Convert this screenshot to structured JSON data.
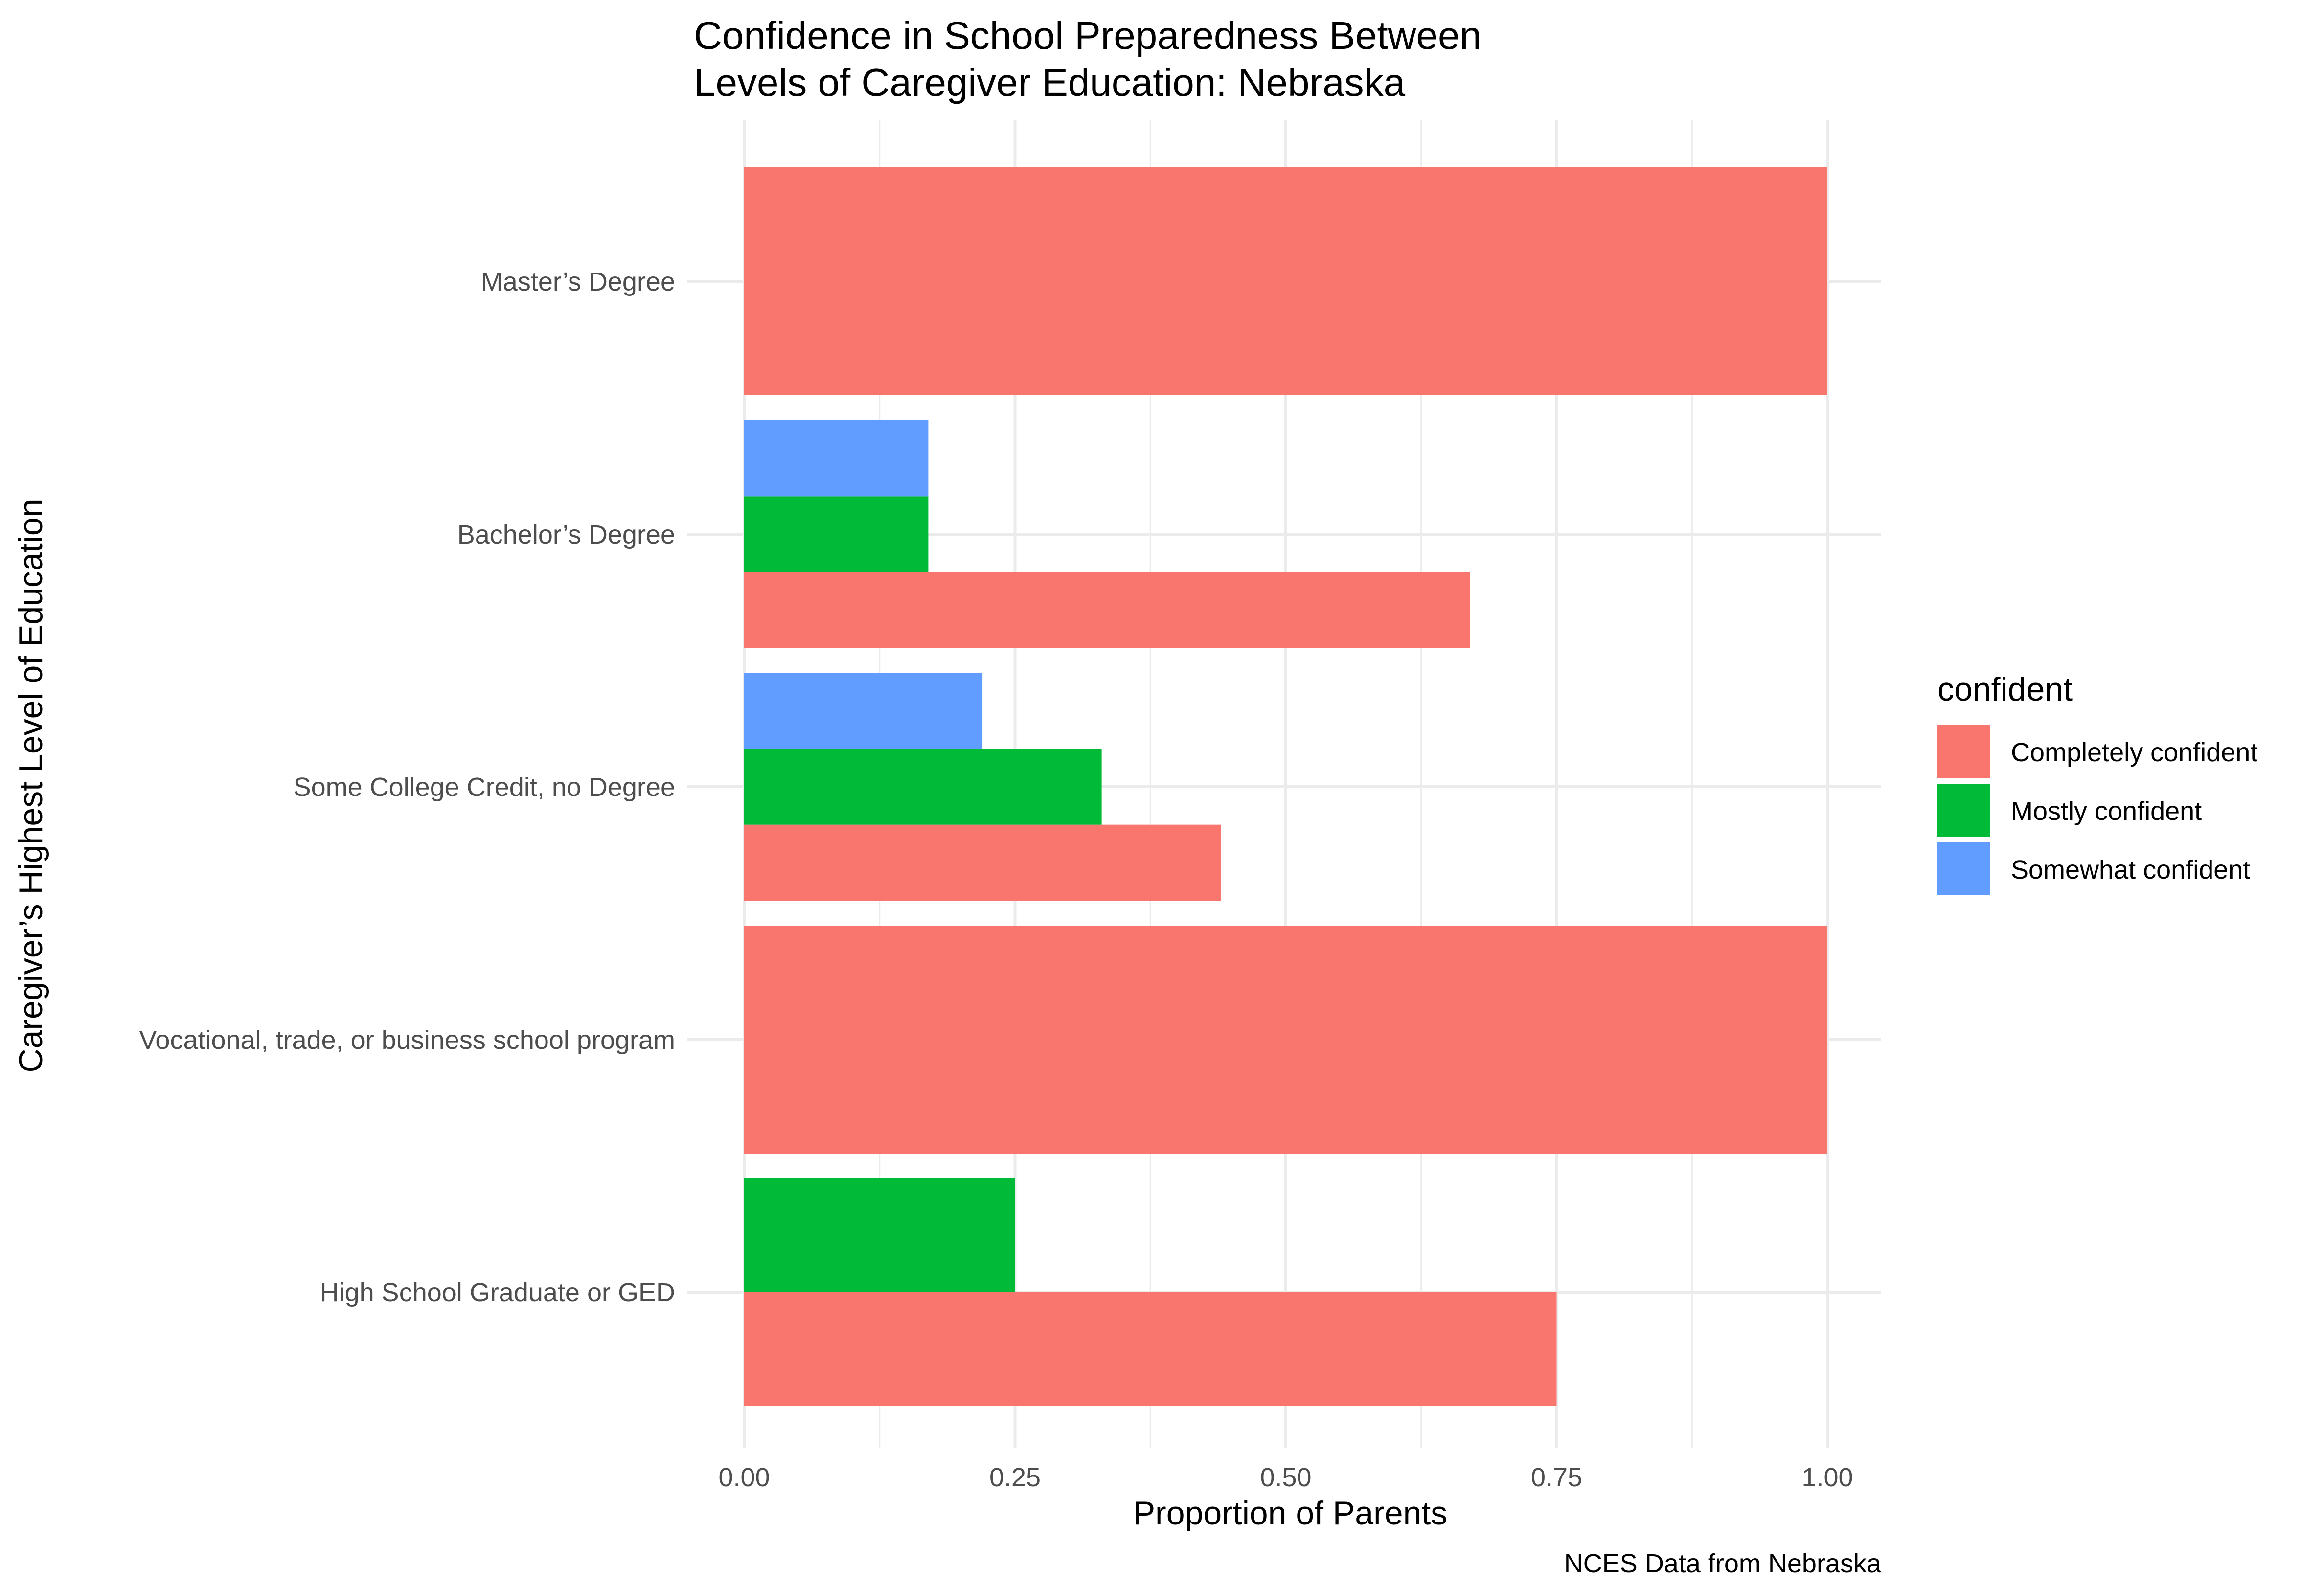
{
  "chart_data": {
    "type": "bar",
    "orientation": "horizontal",
    "title_lines": [
      "Confidence in School Preparedness Between",
      "Levels of Caregiver Education: Nebraska"
    ],
    "xlabel": "Proportion of Parents",
    "ylabel": "Caregiver’s Highest Level of Education",
    "caption": "NCES Data from Nebraska",
    "xlim": [
      0,
      1
    ],
    "x_ticks": [
      "0.00",
      "0.25",
      "0.50",
      "0.75",
      "1.00"
    ],
    "grid": true,
    "legend_position": "right",
    "legend_title": "confident",
    "categories": [
      "Master’s Degree",
      "Bachelor’s Degree",
      "Some College Credit, no Degree",
      "Vocational, trade, or business school program",
      "High School Graduate or GED"
    ],
    "series": [
      {
        "name": "Completely confident",
        "color": "#F8766D",
        "values": [
          1.0,
          0.67,
          0.44,
          1.0,
          0.75
        ]
      },
      {
        "name": "Mostly confident",
        "color": "#00BA38",
        "values": [
          null,
          0.17,
          0.33,
          null,
          0.25
        ]
      },
      {
        "name": "Somewhat confident",
        "color": "#619CFF",
        "values": [
          null,
          0.17,
          0.22,
          null,
          null
        ]
      }
    ]
  }
}
